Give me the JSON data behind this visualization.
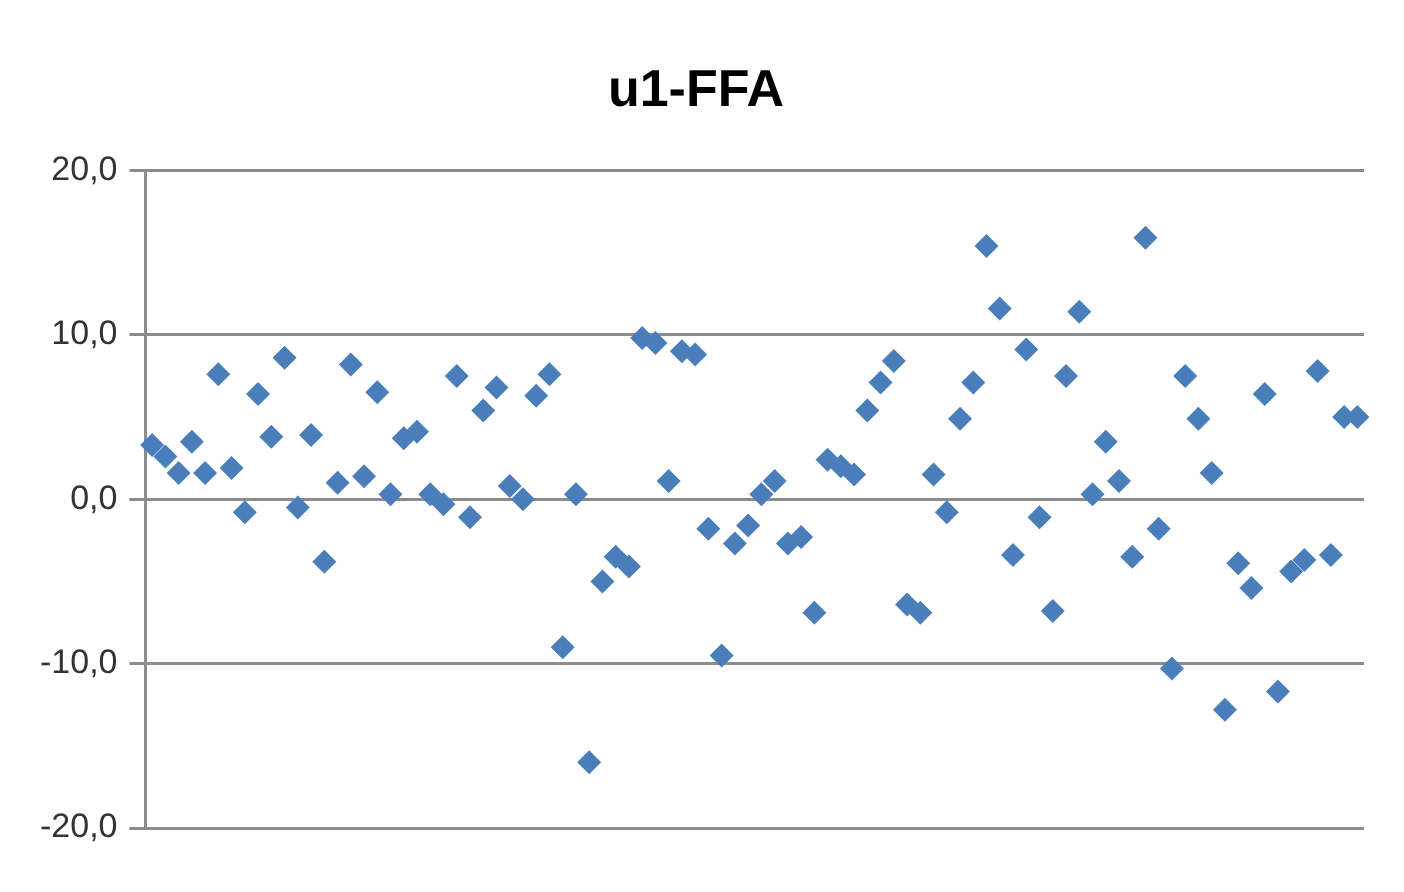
{
  "chart_data": {
    "type": "scatter",
    "title": "u1-FFA",
    "categories": [
      null,
      null,
      null,
      null,
      null,
      null,
      null,
      null,
      null,
      null,
      null,
      null,
      null,
      null,
      null,
      null,
      null,
      null,
      null,
      null,
      null,
      null,
      null,
      null,
      null,
      null,
      null,
      null,
      null,
      null,
      null,
      null,
      null,
      null,
      null,
      null,
      null,
      null,
      null,
      null,
      null,
      null,
      null,
      null,
      null,
      null,
      null,
      null,
      null,
      null,
      null,
      null,
      null,
      null,
      null,
      null,
      null,
      null,
      null,
      null,
      null,
      null,
      null,
      null,
      null,
      null,
      null,
      null,
      null,
      null,
      null,
      null,
      null,
      null,
      null,
      null,
      null,
      null,
      null,
      null,
      null,
      null,
      null,
      null,
      null,
      null,
      null,
      null,
      null,
      null,
      null,
      null
    ],
    "series": [
      {
        "color": "#4a7ebb",
        "values": [
          3.3,
          2.6,
          1.6,
          3.5,
          1.6,
          7.6,
          1.9,
          -0.8,
          6.4,
          3.8,
          8.6,
          -0.5,
          3.9,
          -3.8,
          1.0,
          8.2,
          1.4,
          6.5,
          0.3,
          3.7,
          4.1,
          0.3,
          -0.3,
          7.5,
          -1.1,
          5.4,
          6.8,
          0.8,
          0.0,
          6.3,
          7.6,
          -9.0,
          0.3,
          -16.0,
          -5.0,
          -3.5,
          -4.1,
          9.8,
          9.5,
          1.1,
          9.0,
          8.8,
          -1.8,
          -9.5,
          -2.7,
          -1.6,
          0.3,
          1.1,
          -2.7,
          -2.3,
          -6.9,
          2.4,
          2.0,
          1.5,
          5.4,
          7.1,
          8.4,
          -6.4,
          -6.9,
          1.5,
          -0.8,
          4.9,
          7.1,
          15.4,
          11.6,
          -3.4,
          9.1,
          -1.1,
          -6.8,
          7.5,
          11.4,
          0.3,
          3.5,
          1.1,
          -3.5,
          15.9,
          -1.8,
          -10.3,
          7.5,
          4.9,
          1.6,
          -12.8,
          -3.9,
          -5.4,
          6.4,
          -11.7,
          -4.4,
          -3.7,
          7.8,
          -3.4,
          5.0,
          5.0
        ]
      }
    ],
    "ylim": [
      -20,
      20
    ],
    "yticks": [
      {
        "value": -20,
        "label": "-20,0"
      },
      {
        "value": -10,
        "label": "-10,0"
      },
      {
        "value": 0,
        "label": "0,0"
      },
      {
        "value": 10,
        "label": "10,0"
      },
      {
        "value": 20,
        "label": "20,0"
      }
    ],
    "grid": "y",
    "legend": false,
    "tick_labels": "y",
    "marker": "diamond"
  }
}
